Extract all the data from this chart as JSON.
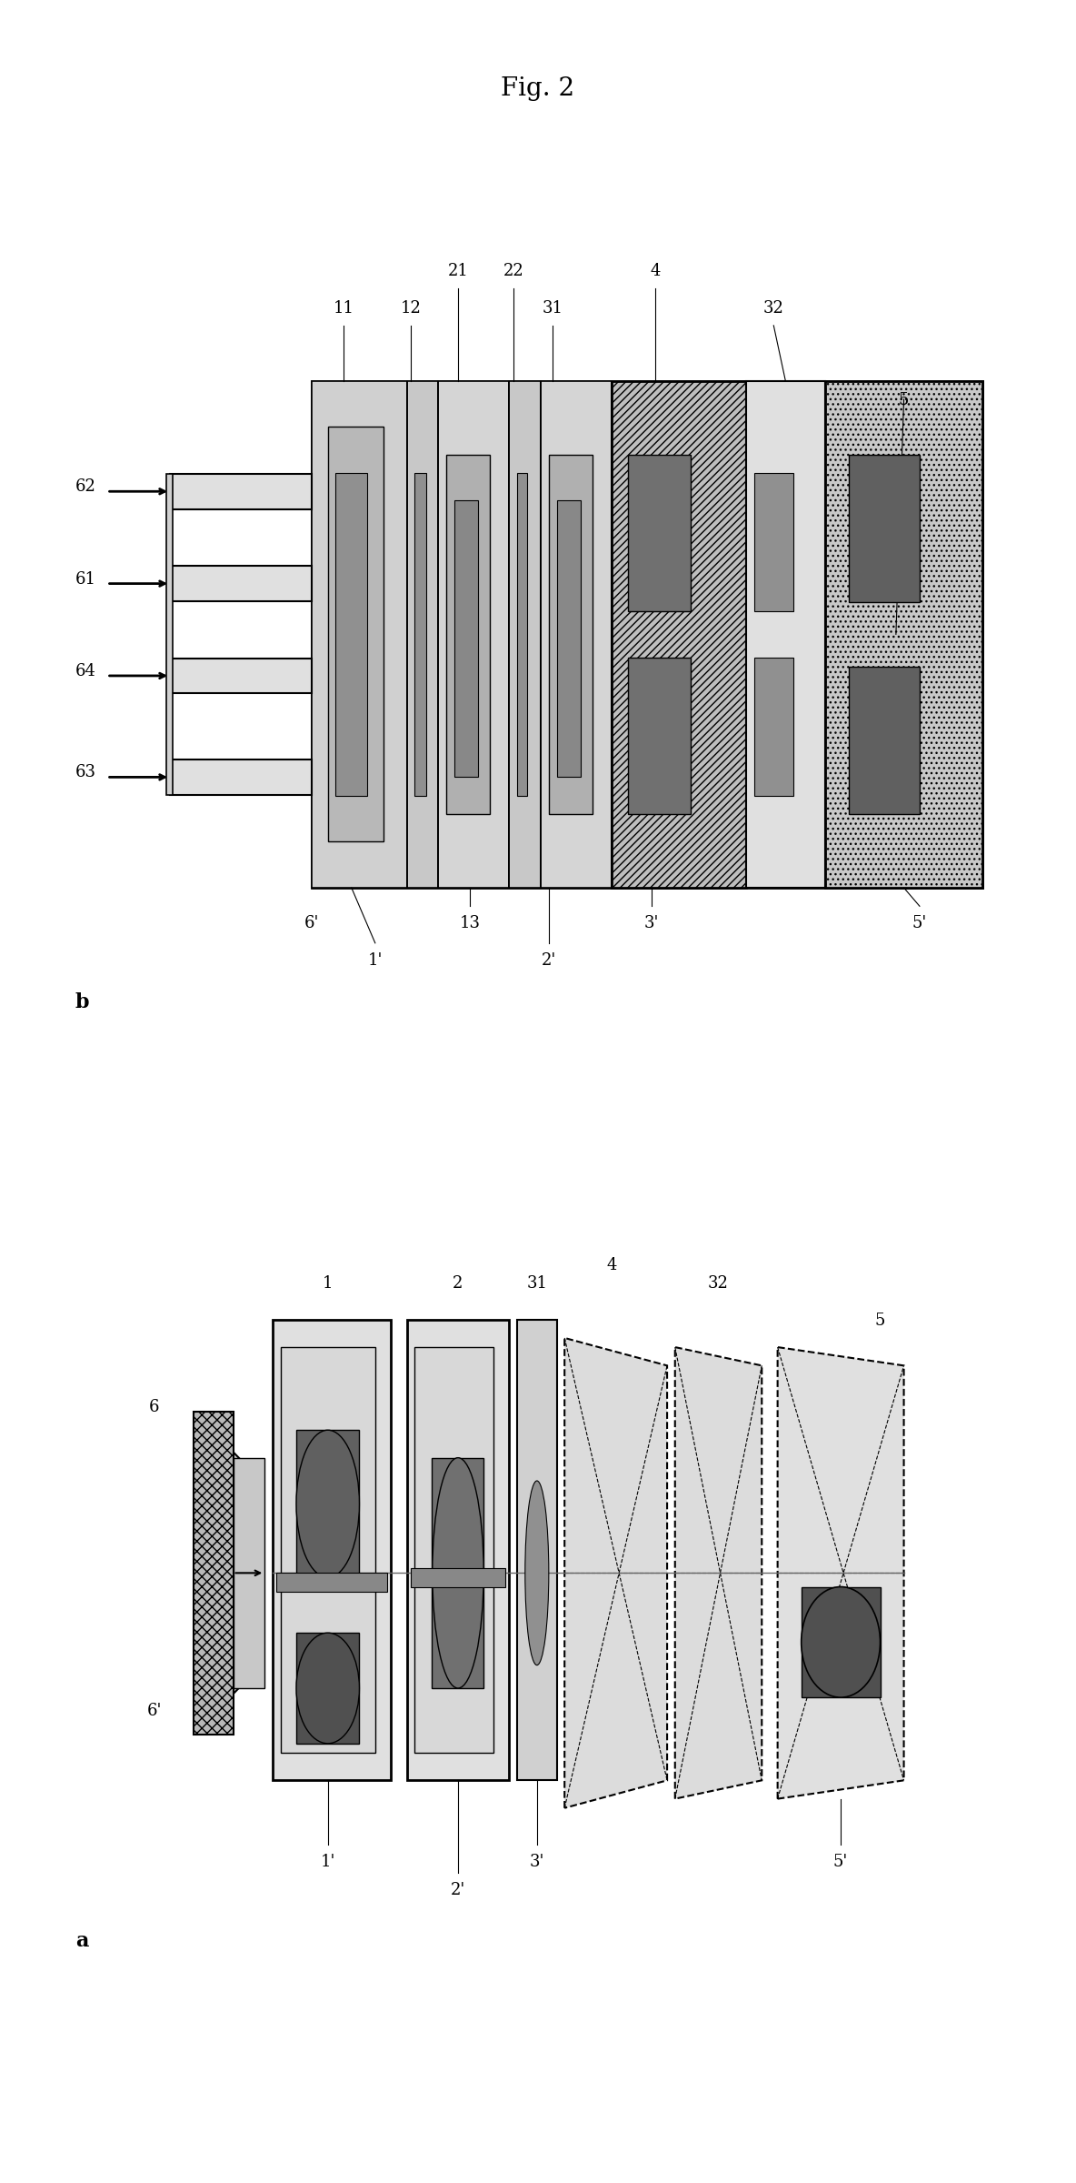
{
  "title": "Fig. 2",
  "bg_color": "#ffffff",
  "fig_width": 11.84,
  "fig_height": 24.0,
  "title_fontsize": 20,
  "label_fontsize": 13,
  "sub_label_fontsize": 16,
  "gray_light": "#d8d8d8",
  "gray_mid": "#b0b0b0",
  "gray_dark": "#808080",
  "gray_vdark": "#505050",
  "gray_dotted": "#c0c0c0"
}
